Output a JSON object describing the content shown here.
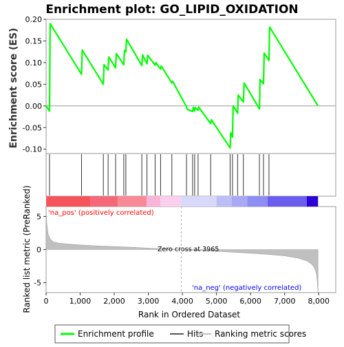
{
  "chart_data": {
    "type": "line",
    "title": "Enrichment plot: GO_LIPID_OXIDATION",
    "es_panel": {
      "ylabel": "Enrichment score (ES)",
      "ylim": [
        -0.11,
        0.2
      ],
      "yticks": [
        "-0.10",
        "-0.05",
        "0.00",
        "0.05",
        "0.10",
        "0.15",
        "0.20"
      ],
      "ytick_values": [
        -0.1,
        -0.05,
        0.0,
        0.05,
        0.1,
        0.15,
        0.2
      ],
      "series": [
        {
          "name": "Enrichment profile",
          "color": "#00ff00",
          "x": [
            0,
            100,
            120,
            1040,
            1060,
            1680,
            1700,
            1820,
            1840,
            2040,
            2060,
            2280,
            2300,
            2340,
            2360,
            2810,
            2830,
            2960,
            2980,
            3200,
            3220,
            3360,
            3380,
            3690,
            3710,
            4120,
            4140,
            4300,
            4320,
            4360,
            4380,
            4460,
            4480,
            4830,
            4850,
            5400,
            5420,
            5470,
            5490,
            5620,
            5640,
            5790,
            5810,
            6260,
            6280,
            6380,
            6400,
            6540,
            6560,
            7980
          ],
          "y": [
            0.0,
            -0.012,
            0.19,
            0.073,
            0.129,
            0.05,
            0.095,
            0.083,
            0.113,
            0.088,
            0.121,
            0.095,
            0.128,
            0.125,
            0.154,
            0.093,
            0.118,
            0.097,
            0.117,
            0.094,
            0.1,
            0.085,
            0.092,
            0.053,
            0.057,
            -0.002,
            -0.008,
            -0.013,
            -0.003,
            -0.012,
            -0.004,
            -0.01,
            -0.003,
            -0.041,
            -0.032,
            -0.097,
            -0.062,
            -0.072,
            0.0,
            -0.017,
            0.025,
            0.009,
            0.053,
            -0.007,
            0.061,
            0.051,
            0.122,
            0.105,
            0.182,
            0.0
          ]
        }
      ]
    },
    "hits": [
      100,
      1040,
      1680,
      1820,
      2040,
      2280,
      2340,
      2810,
      2960,
      3200,
      3360,
      3690,
      4120,
      4300,
      4360,
      4460,
      4830,
      5400,
      5470,
      5620,
      5790,
      6260,
      6380,
      6540
    ],
    "rank_panel": {
      "ylabel": "Ranked list metric (PreRanked)",
      "xlabel": "Rank in Ordered Dataset",
      "ylim": [
        -6.5,
        6.5
      ],
      "yticks": [
        "-5",
        "0",
        "5"
      ],
      "ytick_values": [
        -5,
        0,
        5
      ],
      "xlim": [
        0,
        8500
      ],
      "xticks": [
        "0",
        "1,000",
        "2,000",
        "3,000",
        "4,000",
        "5,000",
        "6,000",
        "7,000",
        "8,000"
      ],
      "xtick_values": [
        0,
        1000,
        2000,
        3000,
        4000,
        5000,
        6000,
        7000,
        8000
      ],
      "metric_color": "#c0c0c0",
      "metric_points_x": [
        0,
        20,
        60,
        120,
        200,
        350,
        600,
        1000,
        1500,
        2000,
        2500,
        3000,
        3500,
        3965,
        4500,
        5000,
        5500,
        6000,
        6500,
        7000,
        7400,
        7650,
        7800,
        7880,
        7930,
        7960,
        7980
      ],
      "metric_points_y": [
        6.0,
        4.0,
        2.3,
        1.6,
        1.2,
        1.0,
        0.85,
        0.7,
        0.55,
        0.45,
        0.35,
        0.22,
        0.1,
        0.0,
        -0.12,
        -0.25,
        -0.4,
        -0.55,
        -0.72,
        -0.95,
        -1.3,
        -1.7,
        -2.2,
        -2.8,
        -3.6,
        -5.0,
        -6.6
      ],
      "zero_cross_label": "Zero cross at 3965",
      "zero_cross_value": 3965,
      "pos_label": "'na_pos' (positively correlated)",
      "neg_label": "'na_neg' (negatively correlated)",
      "pos_color": "#ff0000",
      "neg_color": "#0000ff"
    },
    "colorbar": [
      {
        "from": 0,
        "to": 1300,
        "color": "#f5555a"
      },
      {
        "from": 1300,
        "to": 2100,
        "color": "#f56878"
      },
      {
        "from": 2100,
        "to": 2950,
        "color": "#f78a96"
      },
      {
        "from": 2950,
        "to": 3350,
        "color": "#f9b4da"
      },
      {
        "from": 3350,
        "to": 3965,
        "color": "#fbd0ee"
      },
      {
        "from": 3965,
        "to": 5000,
        "color": "#d8d8fa"
      },
      {
        "from": 5000,
        "to": 5450,
        "color": "#bdbdf7"
      },
      {
        "from": 5450,
        "to": 5900,
        "color": "#a8a8f5"
      },
      {
        "from": 5900,
        "to": 6500,
        "color": "#8e8ef2"
      },
      {
        "from": 6500,
        "to": 7650,
        "color": "#6a5cec"
      },
      {
        "from": 7650,
        "to": 7980,
        "color": "#2a00d4"
      }
    ],
    "legend": {
      "items": [
        {
          "label": "Enrichment profile",
          "color": "#00ff00"
        },
        {
          "label": "Hits",
          "color": "#555555"
        },
        {
          "label": "Ranking metric scores",
          "color": "#c0c0c0"
        }
      ],
      "placement": "bottom"
    }
  }
}
